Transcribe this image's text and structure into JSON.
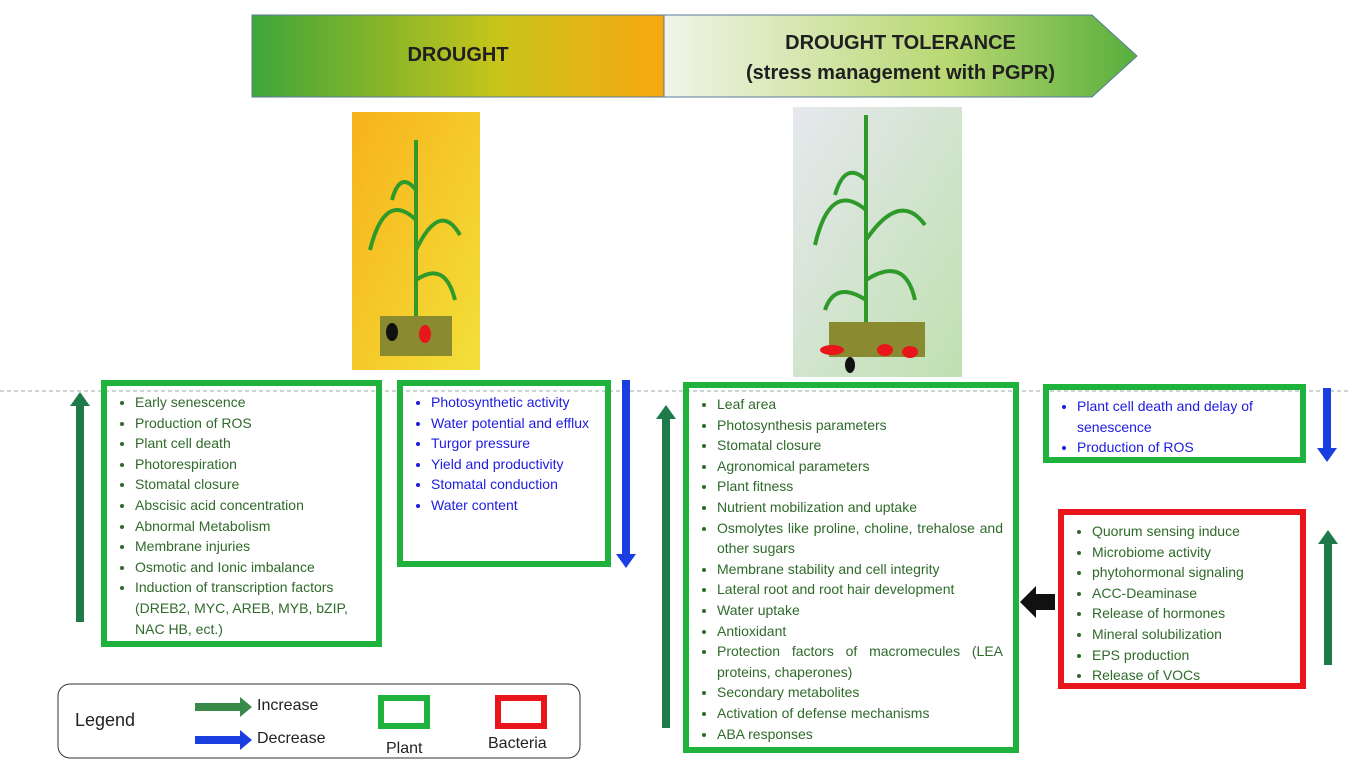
{
  "header": {
    "drought": "DROUGHT",
    "tolerance_line1": "DROUGHT TOLERANCE",
    "tolerance_line2": "(stress management with PGPR)"
  },
  "drought_increase": [
    "Early senescence",
    "Production of ROS",
    "Plant cell death",
    "Photorespiration",
    "Stomatal closure",
    "Abscisic acid concentration",
    "Abnormal Metabolism",
    "Membrane injuries",
    "Osmotic and Ionic imbalance",
    "Induction of transcription factors (DREB2, MYC, AREB, MYB, bZIP, NAC HB, ect.)"
  ],
  "drought_decrease": [
    "Photosynthetic activity",
    "Water potential and efflux",
    "Turgor pressure",
    "Yield and productivity",
    "Stomatal conduction",
    "Water content"
  ],
  "tolerance_increase": [
    "Leaf area",
    "Photosynthesis parameters",
    "Stomatal closure",
    "Agronomical parameters",
    "Plant fitness",
    "Nutrient mobilization and uptake",
    "Osmolytes like proline, choline, trehalose and other sugars",
    "Membrane stability and cell integrity",
    "Lateral root and root hair development",
    "Water uptake",
    "Antioxidant",
    "Protection factors of macromecules (LEA proteins, chaperones)",
    "Secondary metabolites",
    "Activation of defense mechanisms",
    "ABA responses"
  ],
  "tolerance_decrease": [
    "Plant cell death and delay of senescence",
    "Production of ROS"
  ],
  "bacteria": [
    "Quorum sensing induce",
    "Microbiome activity",
    "phytohormonal signaling",
    "ACC-Deaminase",
    "Release of hormones",
    "Mineral solubilization",
    "EPS production",
    "Release of VOCs"
  ],
  "legend": {
    "title": "Legend",
    "increase": "Increase",
    "decrease": "Decrease",
    "plant": "Plant",
    "bacteria": "Bacteria"
  }
}
